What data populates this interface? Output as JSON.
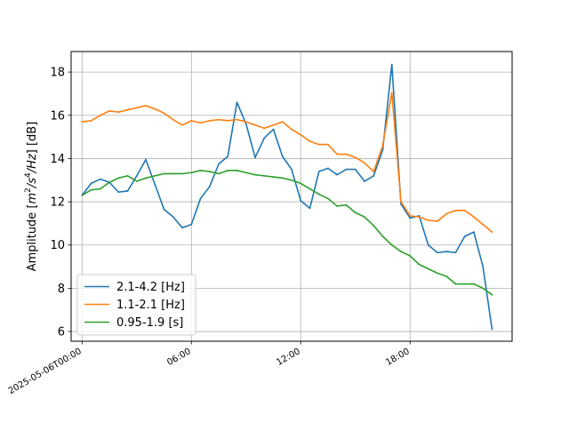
{
  "chart_data": {
    "type": "line",
    "title": "",
    "xlabel": "",
    "ylabel": "Amplitude [m²/s⁴/Hz] [dB]",
    "ylabel_parts": {
      "pre": "Amplitude [",
      "m": "m",
      "sup2": "2",
      "slash_s": "/s",
      "sup4": "4",
      "hz": "/Hz",
      "post": "] [dB]"
    },
    "x_unit": "hours since 2025-05-06T00:00",
    "xlim": [
      -0.6,
      23.6
    ],
    "ylim": [
      5.55,
      18.95
    ],
    "grid": true,
    "legend_position": "lower-left",
    "xticks": [
      {
        "value": 0,
        "label": "2025-05-06T00:00"
      },
      {
        "value": 6,
        "label": "06:00"
      },
      {
        "value": 12,
        "label": "12:00"
      },
      {
        "value": 18,
        "label": "18:00"
      }
    ],
    "yticks": [
      {
        "value": 6,
        "label": "6"
      },
      {
        "value": 8,
        "label": "8"
      },
      {
        "value": 10,
        "label": "10"
      },
      {
        "value": 12,
        "label": "12"
      },
      {
        "value": 14,
        "label": "14"
      },
      {
        "value": 16,
        "label": "16"
      },
      {
        "value": 18,
        "label": "18"
      }
    ],
    "x": [
      0,
      0.5,
      1,
      1.5,
      2,
      2.5,
      3,
      3.5,
      4,
      4.5,
      5,
      5.5,
      6,
      6.5,
      7,
      7.5,
      8,
      8.5,
      9,
      9.5,
      10,
      10.5,
      11,
      11.5,
      12,
      12.5,
      13,
      13.5,
      14,
      14.5,
      15,
      15.5,
      16,
      16.5,
      17,
      17.5,
      18,
      18.5,
      19,
      19.5,
      20,
      20.5,
      21,
      21.5,
      22,
      22.5
    ],
    "series": [
      {
        "name": "2.1-4.2 [Hz]",
        "color": "#1f77b4",
        "values": [
          12.3,
          12.85,
          13.05,
          12.9,
          12.45,
          12.5,
          13.2,
          13.95,
          12.8,
          11.65,
          11.3,
          10.8,
          10.95,
          12.15,
          12.7,
          13.75,
          14.1,
          16.6,
          15.6,
          14.05,
          14.95,
          15.35,
          14.1,
          13.5,
          12.05,
          11.7,
          13.4,
          13.55,
          13.25,
          13.5,
          13.5,
          12.95,
          13.2,
          14.4,
          18.35,
          11.9,
          11.25,
          11.35,
          10.0,
          9.65,
          9.7,
          9.65,
          10.4,
          10.6,
          9.0,
          6.1
        ]
      },
      {
        "name": "1.1-2.1 [Hz]",
        "color": "#ff7f0e",
        "values": [
          15.7,
          15.75,
          16.0,
          16.2,
          16.15,
          16.25,
          16.35,
          16.45,
          16.3,
          16.1,
          15.8,
          15.55,
          15.75,
          15.65,
          15.75,
          15.8,
          15.75,
          15.8,
          15.7,
          15.55,
          15.4,
          15.55,
          15.7,
          15.35,
          15.1,
          14.8,
          14.65,
          14.65,
          14.2,
          14.2,
          14.05,
          13.8,
          13.4,
          14.6,
          17.05,
          12.0,
          11.35,
          11.3,
          11.15,
          11.1,
          11.45,
          11.6,
          11.6,
          11.3,
          10.95,
          10.6
        ]
      },
      {
        "name": "0.95-1.9 [s]",
        "color": "#2ca02c",
        "values": [
          12.3,
          12.55,
          12.6,
          12.9,
          13.1,
          13.2,
          12.95,
          13.1,
          13.2,
          13.3,
          13.3,
          13.3,
          13.35,
          13.45,
          13.4,
          13.3,
          13.45,
          13.45,
          13.35,
          13.25,
          13.2,
          13.15,
          13.1,
          13.0,
          12.85,
          12.6,
          12.35,
          12.15,
          11.8,
          11.85,
          11.5,
          11.3,
          10.9,
          10.4,
          10.0,
          9.7,
          9.5,
          9.1,
          8.9,
          8.7,
          8.55,
          8.2,
          8.2,
          8.2,
          8.0,
          7.7
        ]
      }
    ]
  }
}
